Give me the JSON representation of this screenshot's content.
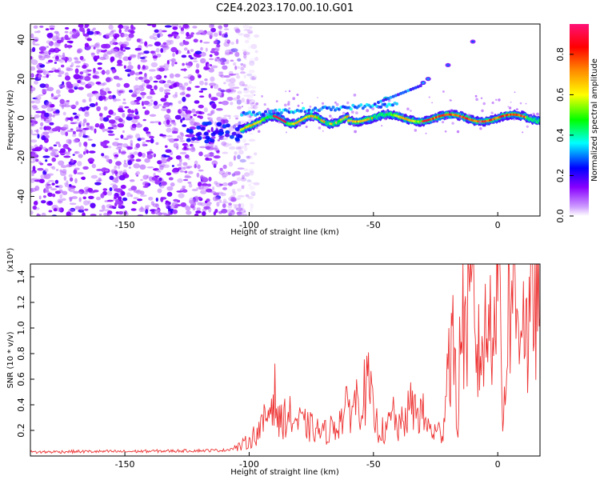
{
  "title": "C2E4.2023.170.00.10.G01",
  "chart_data": [
    {
      "type": "heatmap",
      "xlabel": "Height of straight line (km)",
      "ylabel": "Frequency (Hz)",
      "xlim": [
        -188,
        17
      ],
      "ylim": [
        -50,
        48
      ],
      "x_ticks": [
        "-150",
        "-100",
        "-50",
        "0"
      ],
      "y_ticks": [
        "-40",
        "-20",
        "0",
        "20",
        "40"
      ],
      "colorbar": {
        "label": "Normalized spectral amplitude",
        "range": [
          0,
          0.95
        ],
        "ticks": [
          "0.0",
          "0.2",
          "0.4",
          "0.6",
          "0.8"
        ],
        "colormap": "rainbow (violet -> blue -> cyan -> green -> yellow -> orange -> red -> pink)"
      },
      "features": {
        "noise_region_x": [
          -188,
          -103
        ],
        "main_band": {
          "x": [
            -103,
            17
          ],
          "freq_hz": 0,
          "peak_amplitude": 0.95
        },
        "upper_branch": {
          "points": [
            [
              -45,
              10
            ],
            [
              -30,
              18
            ],
            [
              -28,
              20
            ],
            [
              -20,
              27
            ],
            [
              -10,
              39
            ]
          ]
        }
      },
      "colors": {
        "low": "#8800ff",
        "mid": "#00ffff",
        "high": "#ff0000"
      }
    },
    {
      "type": "line",
      "xlabel": "Height of straight line (km)",
      "ylabel": "SNR (10 * v/v)",
      "yscale_note": "(x10⁴)",
      "xlim": [
        -188,
        17
      ],
      "ylim": [
        0,
        15000
      ],
      "x_ticks": [
        "-150",
        "-100",
        "-50",
        "0"
      ],
      "y_ticks": [
        "0.2",
        "0.4",
        "0.6",
        "0.8",
        "1.0",
        "1.2",
        "1.4"
      ],
      "series": [
        {
          "color": "#ee3333",
          "x": [
            -188,
            -170,
            -150,
            -130,
            -110,
            -104,
            -100,
            -95,
            -92,
            -90,
            -88,
            -85,
            -80,
            -75,
            -70,
            -65,
            -60,
            -55,
            -52,
            -50,
            -48,
            -45,
            -42,
            -40,
            -35,
            -30,
            -28,
            -25,
            -22,
            -20,
            -18,
            -16,
            -15,
            -12,
            -10,
            -8,
            -6,
            -4,
            -2,
            0,
            1,
            2,
            3,
            4,
            6,
            8,
            10,
            12,
            14,
            17
          ],
          "values": [
            300,
            350,
            350,
            400,
            450,
            700,
            1200,
            2200,
            3500,
            5200,
            2500,
            3200,
            2600,
            2200,
            1800,
            2400,
            3800,
            4600,
            5400,
            3200,
            2200,
            1800,
            3400,
            2000,
            3800,
            3200,
            2200,
            1800,
            2000,
            7800,
            9000,
            1800,
            10500,
            10000,
            12000,
            7600,
            8800,
            9800,
            11800,
            14800,
            13200,
            2500,
            5600,
            11000,
            13500,
            10200,
            13000,
            8500,
            12400,
            10800
          ]
        }
      ]
    }
  ]
}
